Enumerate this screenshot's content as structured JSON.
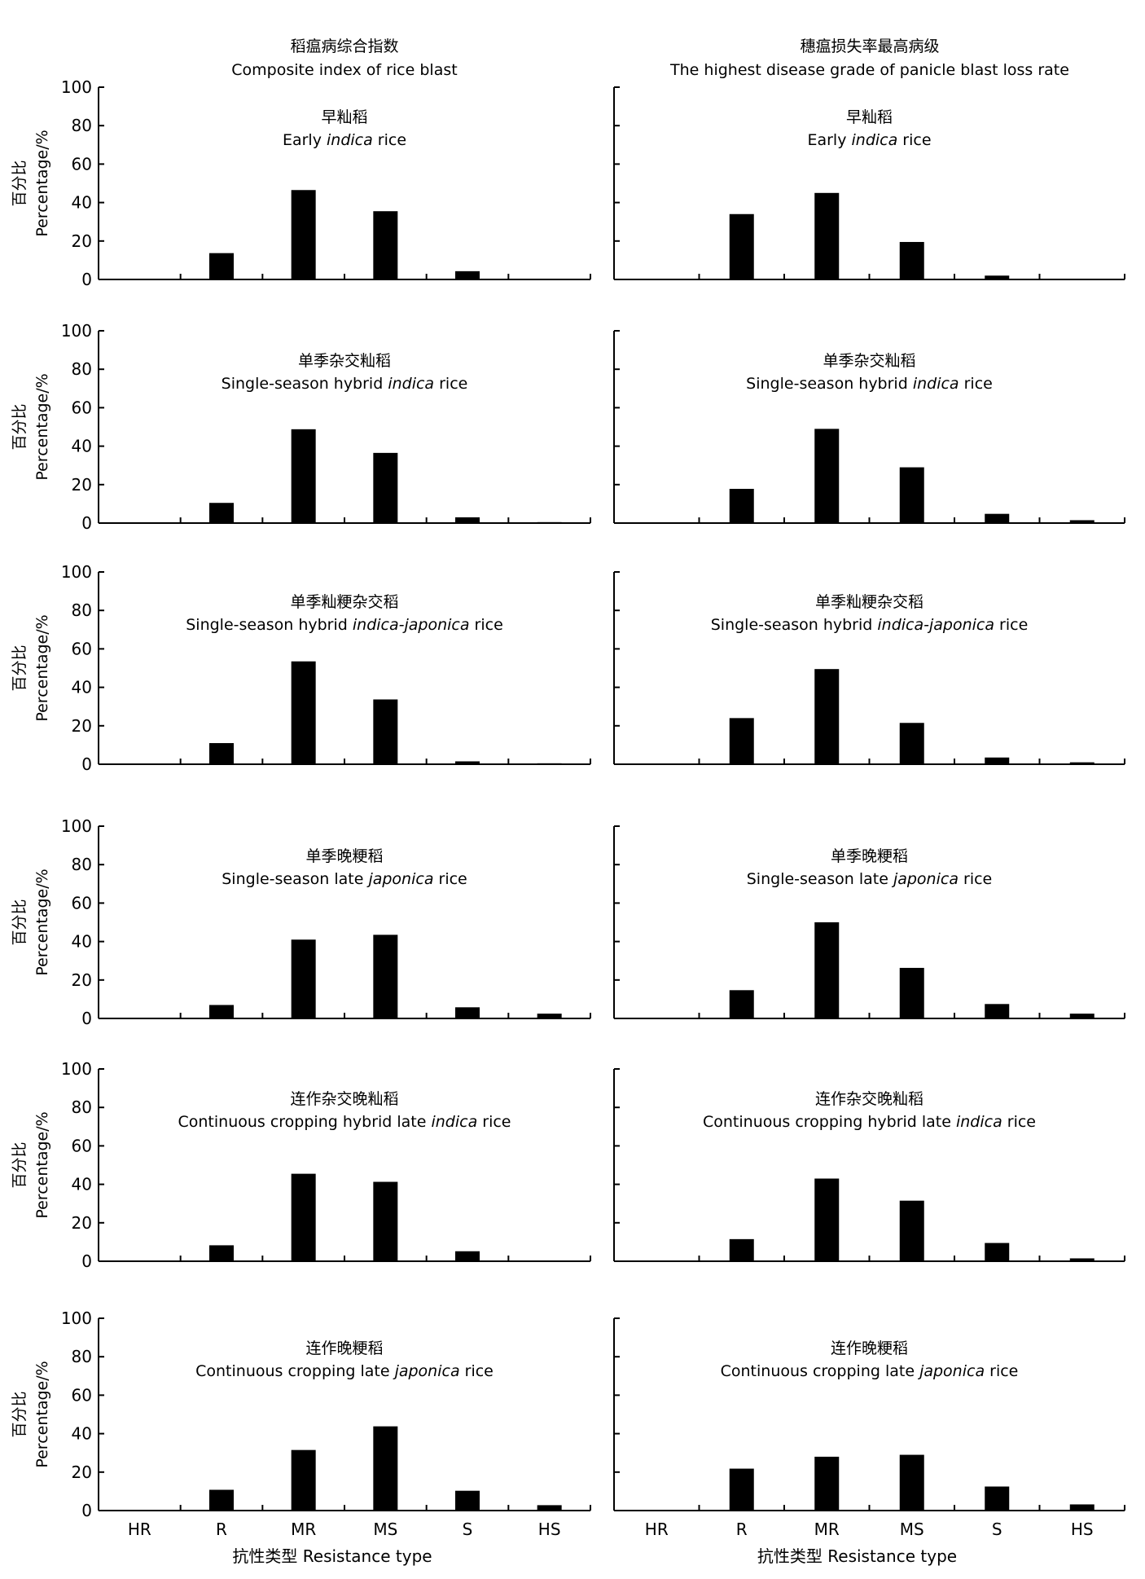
{
  "column_titles": [
    {
      "cn": "稻瘟病综合指数",
      "en": "Composite index of rice blast"
    },
    {
      "cn": "穗瘟损失率最高病级",
      "en": "The highest disease grade of panicle blast loss rate"
    }
  ],
  "y_label": {
    "cn": "百分比",
    "en": "Percentage/%"
  },
  "x_label": "抗性类型 Resistance type",
  "colors": {
    "bar": "#000000",
    "axis": "#000000"
  },
  "chart_data": {
    "type": "bar",
    "layout": "6 rows x 2 columns grid",
    "categories": [
      "HR",
      "R",
      "MR",
      "MS",
      "S",
      "HS"
    ],
    "ylim": [
      0,
      100
    ],
    "yticks": [
      0,
      20,
      40,
      60,
      80,
      100
    ],
    "grid": false,
    "panels": [
      {
        "cn": "早籼稻",
        "en": [
          "Early ",
          "indica",
          " rice"
        ],
        "values": [
          [
            0,
            13.7,
            46.5,
            35.5,
            4.3,
            0
          ],
          [
            0,
            34,
            45,
            19.5,
            2,
            0
          ]
        ]
      },
      {
        "cn": "单季杂交籼稻",
        "en": [
          "Single-season hybrid ",
          "indica",
          " rice"
        ],
        "values": [
          [
            0,
            10.5,
            48.8,
            36.5,
            3,
            0.5
          ],
          [
            0,
            17.8,
            49,
            29,
            4.8,
            1.5
          ]
        ]
      },
      {
        "cn": "单季籼粳杂交稻",
        "en": [
          "Single-season hybrid ",
          "indica-japonica",
          " rice"
        ],
        "values": [
          [
            0,
            11,
            53.5,
            33.7,
            1.5,
            0.5
          ],
          [
            0,
            24,
            49.5,
            21.5,
            3.5,
            1
          ]
        ]
      },
      {
        "cn": "单季晚粳稻",
        "en": [
          "Single-season late ",
          "japonica",
          " rice"
        ],
        "values": [
          [
            0,
            7,
            41,
            43.5,
            5.8,
            2.5
          ],
          [
            0,
            14.7,
            50,
            26.3,
            7.5,
            2.5
          ]
        ]
      },
      {
        "cn": "连作杂交晚籼稻",
        "en": [
          "Continuous cropping hybrid late ",
          "indica",
          " rice"
        ],
        "values": [
          [
            0,
            8.3,
            45.5,
            41.3,
            5.2,
            0
          ],
          [
            0,
            11.5,
            43,
            31.5,
            9.5,
            1.5
          ]
        ]
      },
      {
        "cn": "连作晚粳稻",
        "en": [
          "Continuous cropping late ",
          "japonica",
          " rice"
        ],
        "values": [
          [
            0,
            10.8,
            31.5,
            43.8,
            10.3,
            2.8
          ],
          [
            0,
            21.8,
            28,
            29,
            12.5,
            3.2
          ]
        ]
      }
    ]
  }
}
